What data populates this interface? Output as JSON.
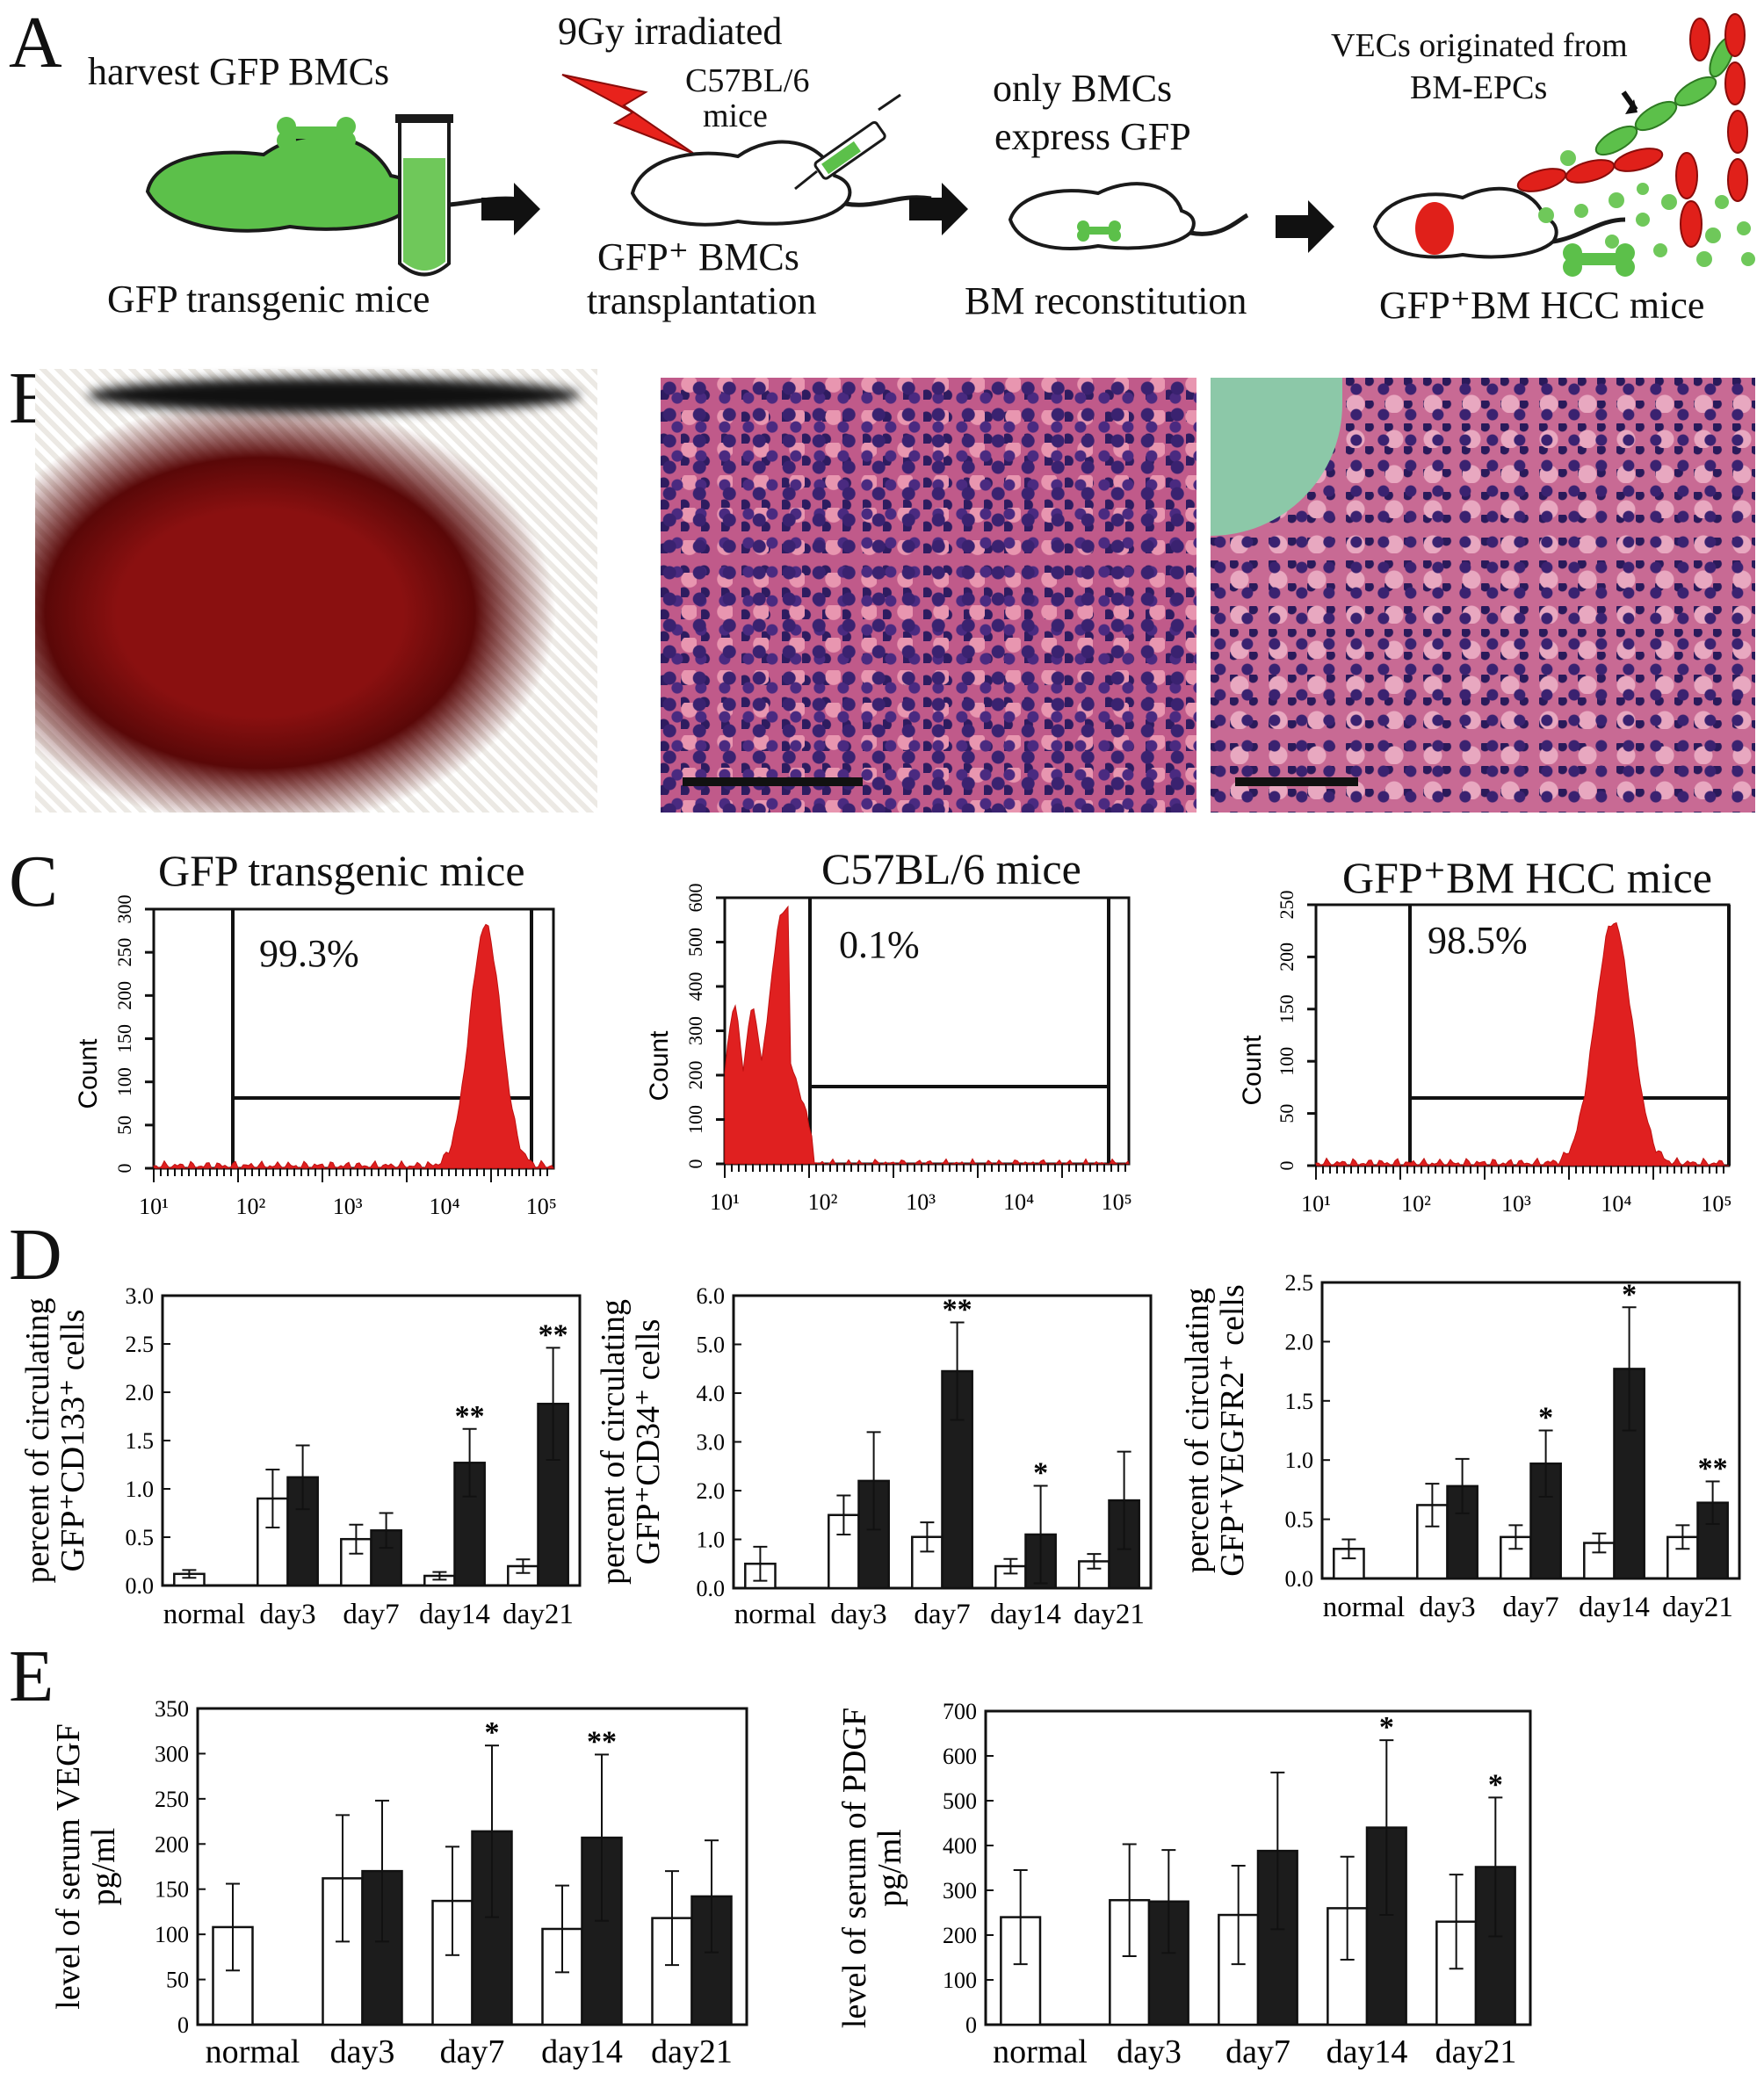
{
  "panel_letters": [
    "A",
    "B",
    "C",
    "D",
    "E"
  ],
  "panel_a": {
    "step1_title": "harvest GFP BMCs",
    "step1_caption": "GFP transgenic mice",
    "step2_title": "9Gy irradiated",
    "step2_mice_line1": "C57BL/6",
    "step2_mice_line2": "mice",
    "step2_caption_line1": "GFP⁺ BMCs",
    "step2_caption_line2": "transplantation",
    "step3_title_line1": "only BMCs",
    "step3_title_line2": "express GFP",
    "step3_caption": "BM reconstitution",
    "step4_note_line1": "VECs originated from",
    "step4_note_line2": "BM-EPCs",
    "step4_caption": "GFP⁺BM HCC mice"
  },
  "panel_c": [
    {
      "title": "GFP transgenic mice",
      "percent": "99.3%",
      "ylabel": "Count",
      "y_ticks": [
        "0",
        "50",
        "100",
        "150",
        "200",
        "250",
        "300"
      ],
      "x_ticks": [
        "10¹",
        "10²",
        "10³",
        "10⁴",
        "10⁵"
      ]
    },
    {
      "title": "C57BL/6 mice",
      "percent": "0.1%",
      "ylabel": "Count",
      "y_ticks": [
        "0",
        "100",
        "200",
        "300",
        "400",
        "500",
        "600"
      ],
      "x_ticks": [
        "10¹",
        "10²",
        "10³",
        "10⁴",
        "10⁵"
      ]
    },
    {
      "title": "GFP⁺BM HCC mice",
      "percent": "98.5%",
      "ylabel": "Count",
      "y_ticks": [
        "0",
        "50",
        "100",
        "150",
        "200",
        "250"
      ],
      "x_ticks": [
        "10¹",
        "10²",
        "10³",
        "10⁴",
        "10⁵"
      ]
    }
  ],
  "chart_data": [
    {
      "type": "bar",
      "panel": "D",
      "categories": [
        "normal",
        "day3",
        "day7",
        "day14",
        "day21"
      ],
      "ylabel_line1": "percent of circulating",
      "ylabel_line2": "GFP⁺CD133⁺ cells",
      "ylim": [
        0,
        3.0
      ],
      "y_ticks": [
        "0.0",
        "0.5",
        "1.0",
        "1.5",
        "2.0",
        "2.5",
        "3.0"
      ],
      "series": [
        {
          "values": [
            0.12,
            0.9,
            0.48,
            0.1,
            0.2
          ],
          "errors": [
            0.04,
            0.3,
            0.15,
            0.04,
            0.07
          ]
        },
        {
          "values": [
            null,
            1.12,
            0.57,
            1.27,
            1.88
          ],
          "errors": [
            null,
            0.33,
            0.18,
            0.35,
            0.58
          ]
        }
      ],
      "stars": [
        null,
        null,
        null,
        "**",
        "**"
      ]
    },
    {
      "type": "bar",
      "panel": "D",
      "categories": [
        "normal",
        "day3",
        "day7",
        "day14",
        "day21"
      ],
      "ylabel_line1": "percent of circulating",
      "ylabel_line2": "GFP⁺CD34⁺ cells",
      "ylim": [
        0,
        6.0
      ],
      "y_ticks": [
        "0.0",
        "1.0",
        "2.0",
        "3.0",
        "4.0",
        "5.0",
        "6.0"
      ],
      "series": [
        {
          "values": [
            0.5,
            1.5,
            1.05,
            0.45,
            0.55
          ],
          "errors": [
            0.35,
            0.4,
            0.3,
            0.15,
            0.15
          ]
        },
        {
          "values": [
            null,
            2.2,
            4.45,
            1.1,
            1.8
          ],
          "errors": [
            null,
            1.0,
            1.0,
            1.0,
            1.0
          ]
        }
      ],
      "stars": [
        null,
        null,
        "**",
        "*",
        null
      ]
    },
    {
      "type": "bar",
      "panel": "D",
      "categories": [
        "normal",
        "day3",
        "day7",
        "day14",
        "day21"
      ],
      "ylabel_line1": "percent of circulating",
      "ylabel_line2": "GFP⁺VEGFR2⁺ cells",
      "ylim": [
        0,
        2.5
      ],
      "y_ticks": [
        "0.0",
        "0.5",
        "1.0",
        "1.5",
        "2.0",
        "2.5"
      ],
      "series": [
        {
          "values": [
            0.25,
            0.62,
            0.35,
            0.3,
            0.35
          ],
          "errors": [
            0.08,
            0.18,
            0.1,
            0.08,
            0.1
          ]
        },
        {
          "values": [
            null,
            0.78,
            0.97,
            1.77,
            0.64
          ],
          "errors": [
            null,
            0.23,
            0.28,
            0.52,
            0.18
          ]
        }
      ],
      "stars": [
        null,
        null,
        "*",
        "*",
        "**"
      ]
    },
    {
      "type": "bar",
      "panel": "E",
      "categories": [
        "normal",
        "day3",
        "day7",
        "day14",
        "day21"
      ],
      "ylabel_line1": "level of serum VEGF",
      "ylabel_line2": "pg/ml",
      "ylim": [
        0,
        350
      ],
      "y_ticks": [
        "0",
        "50",
        "100",
        "150",
        "200",
        "250",
        "300",
        "350"
      ],
      "series": [
        {
          "values": [
            108,
            162,
            137,
            106,
            118
          ],
          "errors": [
            48,
            70,
            60,
            48,
            52
          ]
        },
        {
          "values": [
            null,
            170,
            214,
            207,
            142
          ],
          "errors": [
            null,
            78,
            95,
            92,
            62
          ]
        }
      ],
      "stars": [
        null,
        null,
        "*",
        "**",
        null
      ]
    },
    {
      "type": "bar",
      "panel": "E",
      "categories": [
        "normal",
        "day3",
        "day7",
        "day14",
        "day21"
      ],
      "ylabel_line1": "level of serum of PDGF",
      "ylabel_line2": "pg/ml",
      "ylim": [
        0,
        700
      ],
      "y_ticks": [
        "0",
        "100",
        "200",
        "300",
        "400",
        "500",
        "600",
        "700"
      ],
      "series": [
        {
          "values": [
            240,
            278,
            245,
            260,
            230
          ],
          "errors": [
            105,
            125,
            110,
            115,
            105
          ]
        },
        {
          "values": [
            null,
            275,
            388,
            440,
            352
          ],
          "errors": [
            null,
            115,
            175,
            195,
            155
          ]
        }
      ],
      "stars": [
        null,
        null,
        null,
        "*",
        "*"
      ]
    }
  ]
}
